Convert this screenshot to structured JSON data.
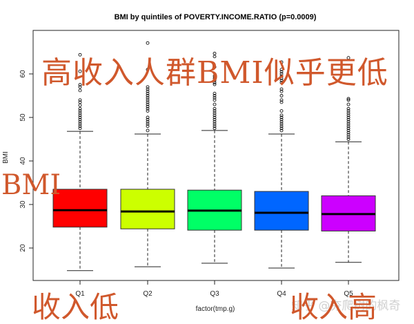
{
  "chart_data": {
    "type": "box",
    "title": "BMI by quintiles of POVERTY.INCOME.RATIO (p=0.0009)",
    "xlabel": "factor(tmp.g)",
    "ylabel": "BMI",
    "categories": [
      "Q1",
      "Q2",
      "Q3",
      "Q4",
      "Q5"
    ],
    "yticks": [
      20,
      30,
      40,
      50,
      60
    ],
    "ylim": [
      12.5,
      70
    ],
    "grid": false,
    "legend": null,
    "series": [
      {
        "name": "Q1",
        "color": "#ff0000",
        "whisker_low": 14.8,
        "q1": 24.8,
        "median": 28.7,
        "q3": 33.5,
        "whisker_high": 46.8,
        "outliers": [
          64.4,
          60.6,
          57.5,
          57.0,
          56.2,
          54.0,
          53.5,
          52.8,
          52.0,
          51.5,
          51.0,
          50.5,
          50.0,
          49.5,
          49.0,
          48.5,
          48.0,
          47.5
        ]
      },
      {
        "name": "Q2",
        "color": "#ccff00",
        "whisker_low": 15.7,
        "q1": 24.4,
        "median": 28.4,
        "q3": 33.5,
        "whisker_high": 46.2,
        "outliers": [
          67.1,
          61.0,
          57.0,
          56.5,
          56.0,
          55.5,
          55.0,
          54.5,
          54.0,
          53.5,
          53.0,
          52.5,
          52.0,
          51.5,
          50.0,
          49.5,
          49.0,
          48.5,
          48.0,
          47.0
        ]
      },
      {
        "name": "Q3",
        "color": "#00ff66",
        "whisker_low": 16.5,
        "q1": 24.1,
        "median": 28.6,
        "q3": 33.3,
        "whisker_high": 47.0,
        "outliers": [
          64.7,
          64.0,
          61.6,
          59.5,
          59.0,
          58.5,
          58.0,
          57.6,
          55.5,
          55.0,
          54.5,
          54.0,
          53.0,
          52.0,
          51.5,
          51.0,
          50.5,
          50.0,
          49.5,
          49.0,
          48.5,
          48.0,
          47.5
        ]
      },
      {
        "name": "Q4",
        "color": "#0066ff",
        "whisker_low": 15.4,
        "q1": 24.1,
        "median": 28.1,
        "q3": 33.0,
        "whisker_high": 46.2,
        "outliers": [
          62.7,
          61.0,
          60.5,
          60.0,
          59.5,
          59.0,
          58.5,
          58.0,
          56.5,
          56.0,
          55.0,
          54.0,
          53.5,
          51.5,
          50.5,
          50.0,
          49.5,
          49.0,
          48.5,
          48.0,
          47.5,
          47.0
        ]
      },
      {
        "name": "Q5",
        "color": "#cc00ff",
        "whisker_low": 16.7,
        "q1": 23.9,
        "median": 27.8,
        "q3": 32.0,
        "whisker_high": 44.4,
        "outliers": [
          63.7,
          54.3,
          54.0,
          53.0,
          52.0,
          51.5,
          51.0,
          50.5,
          50.0,
          49.5,
          49.0,
          48.5,
          48.0,
          47.5,
          47.0,
          46.5,
          46.0,
          45.5,
          45.0
        ]
      }
    ]
  },
  "annotations": {
    "headline": "高收入人群BMI似乎更低",
    "y_label_overlay": "BMI",
    "low_income": "收入低",
    "high_income": "收入高",
    "watermark": "知乎 @夯爬树的枫奇"
  }
}
